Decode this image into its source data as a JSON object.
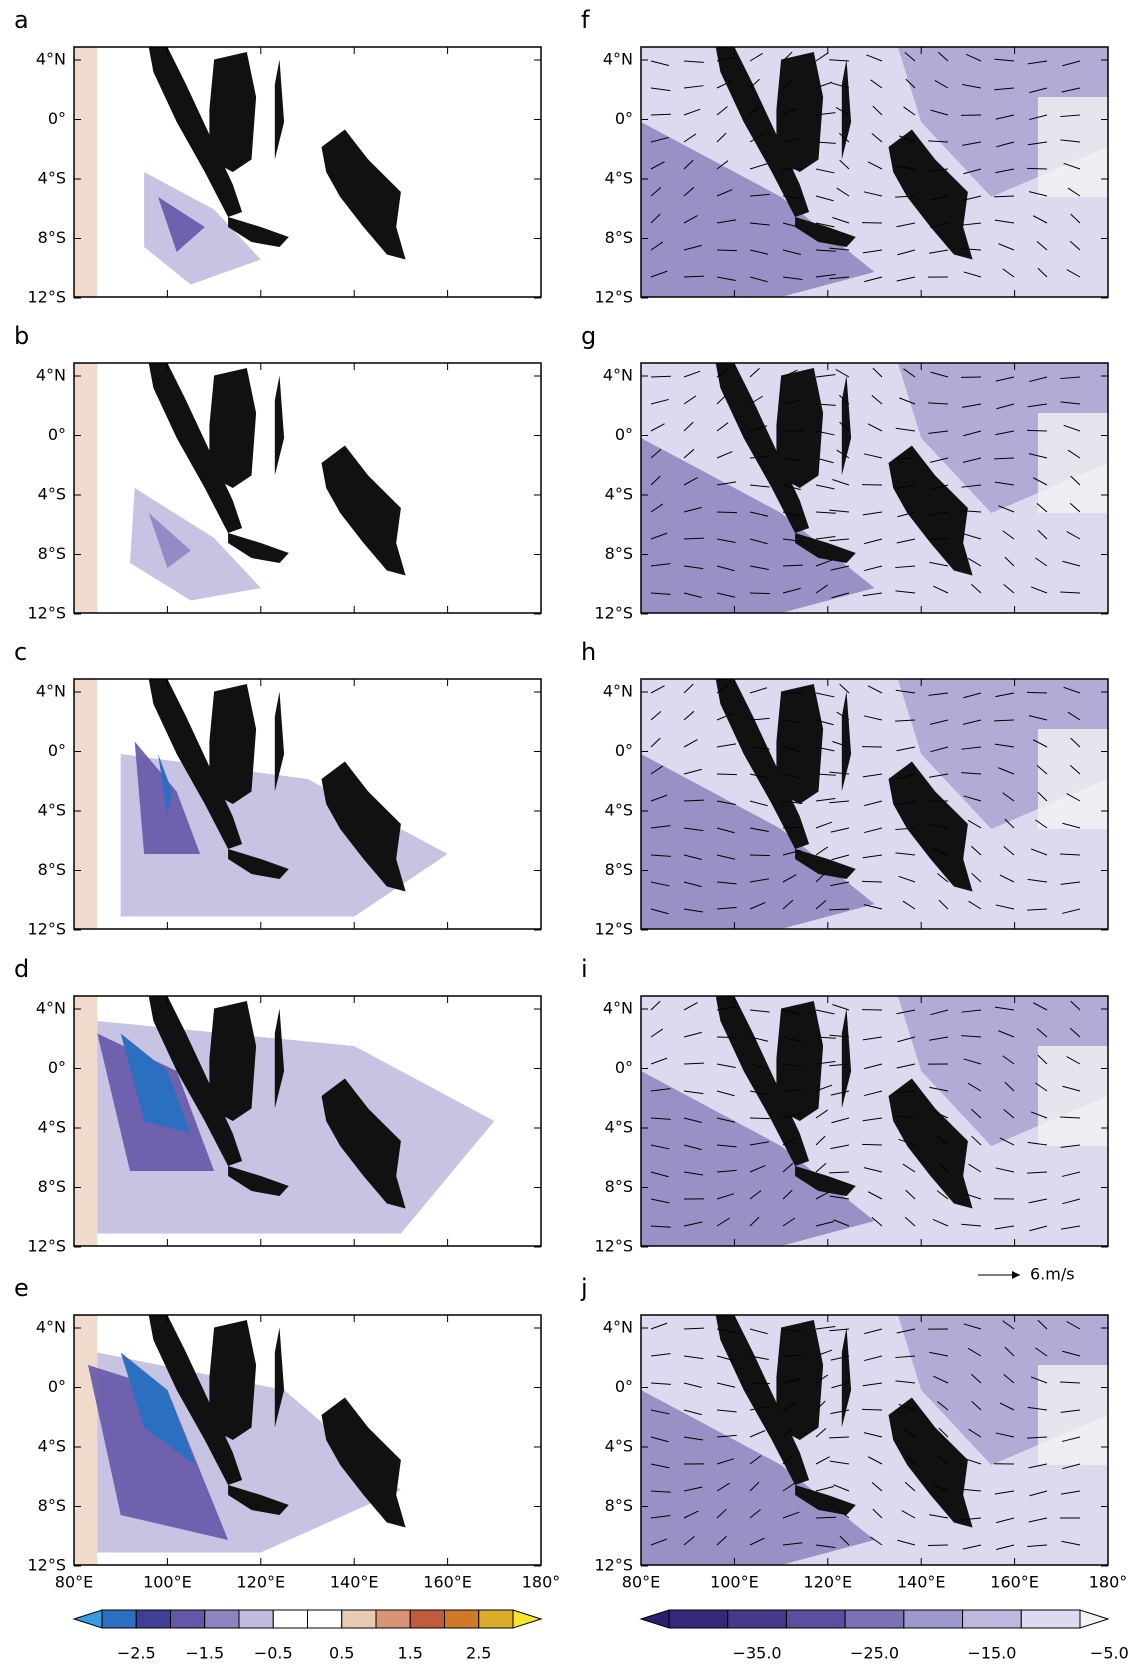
{
  "panels": [
    {
      "label": "a"
    },
    {
      "label": "b"
    },
    {
      "label": "c"
    },
    {
      "label": "d"
    },
    {
      "label": "e"
    },
    {
      "label": "f"
    },
    {
      "label": "g"
    },
    {
      "label": "h"
    },
    {
      "label": "i"
    },
    {
      "label": "j"
    }
  ],
  "lat_ticks": [
    "4°N",
    "0°",
    "4°S",
    "8°S",
    "12°S"
  ],
  "lon_ticks": [
    "80°E",
    "100°E",
    "120°E",
    "140°E",
    "160°E",
    "180°"
  ],
  "vector_reference": "6.m/s",
  "colorbars": [
    {
      "labels": [
        "−2.5",
        "−1.5",
        "−0.5",
        "0.5",
        "1.5",
        "2.5"
      ],
      "colors": [
        "#3a9be0",
        "#2a6fc0",
        "#3e3f95",
        "#6656a8",
        "#8c85c0",
        "#c0bde0",
        "#ffffff",
        "#ffffff",
        "#e8cbb5",
        "#d89475",
        "#c25a3e",
        "#cf7a28",
        "#dcab2c",
        "#f5e62a"
      ]
    },
    {
      "labels": [
        "−35.0",
        "−25.0",
        "−15.0",
        "−5.0"
      ],
      "colors": [
        "#2a1f6e",
        "#352878",
        "#45398a",
        "#5a4f9e",
        "#7a72b5",
        "#9d98cc",
        "#bcb8de",
        "#dcdaee",
        "#f4f4f4"
      ]
    }
  ]
}
